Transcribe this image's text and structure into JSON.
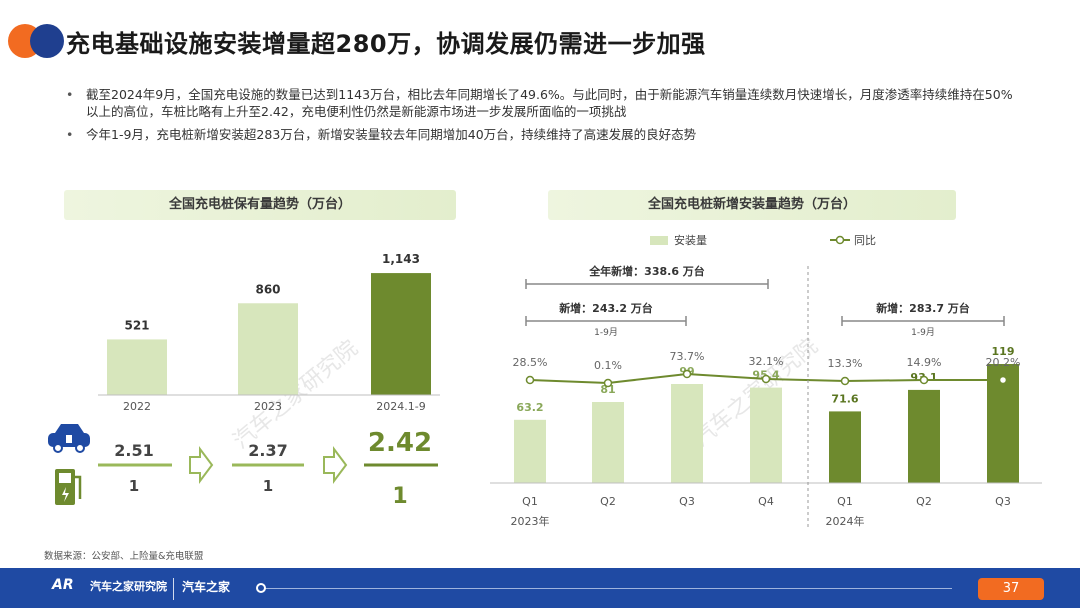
{
  "title": "充电基础设施安装增量超280万，协调发展仍需进一步加强",
  "bullets": [
    "截至2024年9月，全国充电设施的数量已达到1143万台，相比去年同期增长了49.6%。与此同时，由于新能源汽车销量连续数月快速增长，月度渗透率持续维持在50%以上的高位，车桩比略有上升至2.42，充电便利性仍然是新能源市场进一步发展所面临的一项挑战",
    "今年1-9月，充电桩新增安装超283万台，新增安装量较去年同期增加40万台，持续维持了高速发展的良好态势"
  ],
  "left_chart_title": "全国充电桩保有量趋势（万台）",
  "right_chart_title": "全国充电桩新增安装量趋势（万台）",
  "source": "数据来源：公安部、上险量&充电联盟",
  "watermark": "汽车之家研究院",
  "footer": {
    "brand": "汽车之家研究院",
    "brand_mark": "AR",
    "right_brand": "汽车之家",
    "page": "37"
  },
  "ratios": [
    {
      "top": "2.51",
      "bottom": "1"
    },
    {
      "top": "2.37",
      "bottom": "1"
    },
    {
      "top": "2.42",
      "bottom": "1"
    }
  ],
  "colors": {
    "dark_green": "#6e8a2e",
    "light_green": "#d7e6bc",
    "orange": "#f26b21",
    "blue": "#1f4aa3"
  },
  "icons": [
    "car-icon",
    "charger-icon",
    "arrow-right-icon"
  ],
  "chart_data": [
    {
      "type": "bar",
      "categories": [
        "2022",
        "2023",
        "2024.1-9"
      ],
      "values": [
        521,
        860,
        1143
      ],
      "value_labels": [
        "521",
        "860",
        "1,143"
      ],
      "title": "全国充电桩保有量趋势（万台）",
      "ylim": [
        0,
        1200
      ]
    },
    {
      "type": "bar+line",
      "categories": [
        "Q1",
        "Q2",
        "Q3",
        "Q4",
        "Q1",
        "Q2",
        "Q3"
      ],
      "groups": [
        "2023年",
        "2024年"
      ],
      "series": [
        {
          "name": "安装量",
          "type": "bar",
          "values": [
            63.2,
            81,
            99,
            95.4,
            71.6,
            93.1,
            119
          ],
          "labels": [
            "63.2",
            "81",
            "99",
            "95.4",
            "71.6",
            "93.1",
            "119"
          ]
        },
        {
          "name": "同比",
          "type": "line",
          "labels": [
            "28.5%",
            "0.1%",
            "73.7%",
            "32.1%",
            "13.3%",
            "14.9%",
            "20.2%"
          ]
        }
      ],
      "annotations": [
        {
          "text": "全年新增：338.6 万台"
        },
        {
          "text": "新增：243.2 万台",
          "sub": "1-9月"
        },
        {
          "text": "新增：283.7 万台",
          "sub": "1-9月"
        }
      ],
      "ylim": [
        0,
        130
      ],
      "title": "全国充电桩新增安装量趋势（万台）"
    }
  ]
}
